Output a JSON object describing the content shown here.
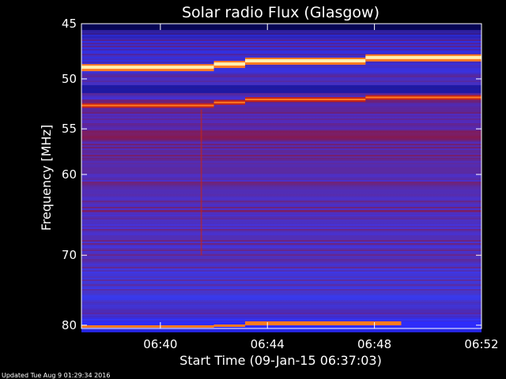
{
  "chart_data": {
    "type": "heatmap",
    "title": "Solar radio Flux (Glasgow)",
    "xlabel": "Start Time (09-Jan-15 06:37:03)",
    "ylabel": "Frequency [MHz]",
    "x_unit": "minutes",
    "xlim": [
      "06:37:03",
      "06:52:00"
    ],
    "ylim": [
      45,
      80.5
    ],
    "y_scale": "log",
    "y_inverted": true,
    "x_ticks": [
      "06:40",
      "06:44",
      "06:48",
      "06:52"
    ],
    "y_ticks": [
      45,
      50,
      55,
      60,
      70,
      80
    ],
    "colormap": [
      "#000033",
      "#1a1aa8",
      "#3a3aff",
      "#5a2fb0",
      "#8a1a4a",
      "#c42418",
      "#ff7a20",
      "#fff0b0"
    ],
    "bright_bands_mhz": [
      48.8,
      52.5,
      80
    ]
  },
  "footer": "Updated Tue Aug  9 01:29:34 2016"
}
